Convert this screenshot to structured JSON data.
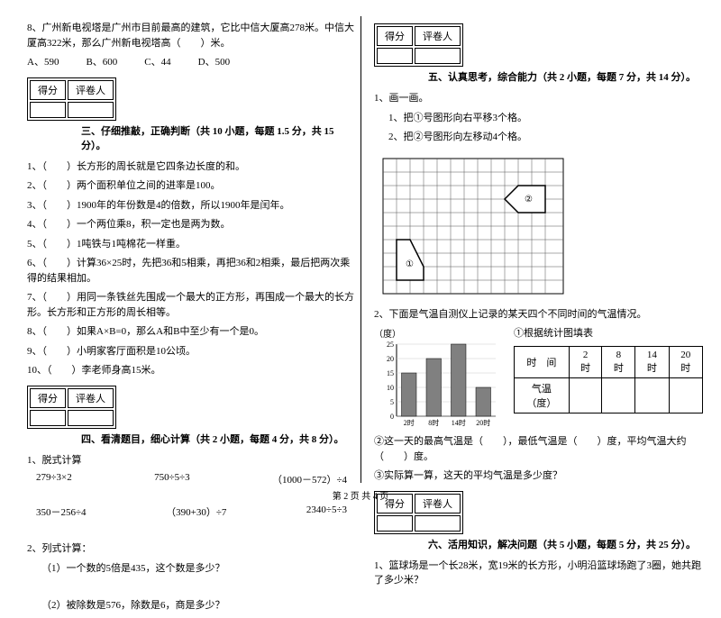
{
  "q8": {
    "t": "8、广州新电视塔是广州市目前最高的建筑，它比中信大厦高278米。中信大厦高322米，那么广州新电视塔高（　　）米。",
    "a": "A、590",
    "b": "B、600",
    "c": "C、44",
    "d": "D、500"
  },
  "boxLabels": {
    "score": "得分",
    "rev": "评卷人"
  },
  "secC": {
    "t": "三、仔细推敲，正确判断（共 10 小题，每题 1.5 分，共 15 分）。",
    "q": [
      "1、（　　）长方形的周长就是它四条边长度的和。",
      "2、（　　）两个面积单位之间的进率是100。",
      "3、（　　）1900年的年份数是4的倍数，所以1900年是闰年。",
      "4、（　　）一个两位乘8，积一定也是两为数。",
      "5、（　　）1吨铁与1吨棉花一样重。",
      "6、（　　）计算36×25时，先把36和5相乘，再把36和2相乘，最后把两次乘得的结果相加。",
      "7、（　　）用同一条铁丝先围成一个最大的正方形，再围成一个最大的长方形。长方形和正方形的周长相等。",
      "8、（　　）如果A×B=0，那么A和B中至少有一个是0。",
      "9、（　　）小明家客厅面积是10公顷。",
      "10、（　　）李老师身高15米。"
    ]
  },
  "secD": {
    "t": "四、看清题目，细心计算（共 2 小题，每题 4 分，共 8 分）。",
    "pre": "1、脱式计算",
    "eq": [
      "279÷3×2",
      "750÷5÷3",
      "（1000－572）÷4",
      "350－256÷4",
      "（390+30）÷7",
      "2340÷5÷3"
    ],
    "pre2": "2、列式计算：",
    "q1": "（1）一个数的5倍是435，这个数是多少？",
    "q2": "（2）被除数是576，除数是6，商是多少？"
  },
  "secE": {
    "t": "五、认真思考，综合能力（共 2 小题，每题 7 分，共 14 分）。",
    "pre": "1、画一画。",
    "s1": "1、把①号图形向右平移3个格。",
    "s2": "2、把②号图形向左移动4个格。",
    "q2": "2、下面是气温自测仪上记录的某天四个不同时间的气温情况。",
    "ylbl": "（度）",
    "ctitle": "①根据统计图填表",
    "th": [
      "时　间",
      "2时",
      "8时",
      "14时",
      "20时"
    ],
    "tr": "气温（度）",
    "t2": "②这一天的最高气温是（　　），最低气温是（　　）度，平均气温大约（　　）度。",
    "t3": "③实际算一算，这天的平均气温是多少度？"
  },
  "secF": {
    "t": "六、活用知识，解决问题（共 5 小题，每题 5 分，共 25 分）。",
    "q1": "1、篮球场是一个长28米，宽19米的长方形，小明沿篮球场跑了3圈，她共跑了多少米？"
  },
  "chart": {
    "bars": [
      15,
      20,
      25,
      10
    ],
    "xlabels": [
      "2时",
      "8时",
      "14时",
      "20时"
    ],
    "ymax": 25,
    "step": 5,
    "baseColor": "#808080",
    "gridColor": "#000"
  },
  "footer": "第 2 页 共 4 页"
}
